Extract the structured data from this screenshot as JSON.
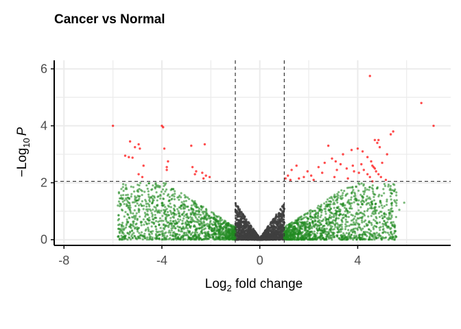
{
  "chart_data": {
    "type": "scatter",
    "title": "Cancer vs Normal",
    "xlabel": {
      "prefix": "Log",
      "sub": "2",
      "suffix": " fold change"
    },
    "ylabel": {
      "minus": "−",
      "prefix": "Log",
      "sub": "10",
      "italic": "P"
    },
    "xlim": [
      -8.4,
      7.8
    ],
    "ylim": [
      -0.2,
      6.3
    ],
    "x_ticks": [
      -8,
      -4,
      0,
      4
    ],
    "x_tick_labels": [
      "-8",
      "-4",
      "0",
      "4"
    ],
    "y_ticks": [
      0,
      2,
      4,
      6
    ],
    "y_tick_labels": [
      "0",
      "2",
      "4",
      "6"
    ],
    "grid": true,
    "thresholds": {
      "log2fc": [
        -1,
        1
      ],
      "neg_log10_p": 2.05
    },
    "colors": {
      "ns": "#404040",
      "log2fc": "#228b22",
      "p_and_log2fc": "#ff0000",
      "grid": "#ebebeb",
      "axis": "#000000",
      "threshold_line": "#333333"
    },
    "series": [
      {
        "group": "p_and_log2fc",
        "points": [
          [
            -6.0,
            4.0
          ],
          [
            -4.0,
            4.0
          ],
          [
            -3.95,
            3.95
          ],
          [
            -5.3,
            3.45
          ],
          [
            -4.95,
            3.35
          ],
          [
            -5.1,
            3.25
          ],
          [
            -4.9,
            3.2
          ],
          [
            -3.9,
            3.2
          ],
          [
            -2.8,
            3.3
          ],
          [
            -2.25,
            3.35
          ],
          [
            -5.5,
            2.95
          ],
          [
            -5.35,
            2.9
          ],
          [
            -5.2,
            2.88
          ],
          [
            -4.75,
            2.6
          ],
          [
            -3.75,
            2.75
          ],
          [
            -3.8,
            2.55
          ],
          [
            -3.8,
            2.45
          ],
          [
            -2.75,
            2.55
          ],
          [
            -2.6,
            2.4
          ],
          [
            -2.35,
            2.35
          ],
          [
            -2.2,
            2.25
          ],
          [
            -2.05,
            2.2
          ],
          [
            -4.95,
            2.3
          ],
          [
            -4.8,
            2.2
          ],
          [
            -2.65,
            2.3
          ],
          [
            -2.3,
            2.15
          ],
          [
            4.5,
            5.75
          ],
          [
            6.6,
            4.8
          ],
          [
            7.1,
            4.0
          ],
          [
            5.45,
            3.8
          ],
          [
            5.35,
            3.7
          ],
          [
            4.85,
            3.5
          ],
          [
            4.9,
            3.25
          ],
          [
            4.7,
            3.5
          ],
          [
            4.8,
            3.4
          ],
          [
            4.2,
            3.1
          ],
          [
            4.0,
            3.2
          ],
          [
            3.75,
            3.15
          ],
          [
            3.4,
            3.0
          ],
          [
            2.8,
            3.3
          ],
          [
            2.95,
            2.85
          ],
          [
            3.1,
            2.75
          ],
          [
            3.3,
            2.65
          ],
          [
            5.2,
            3.0
          ],
          [
            4.4,
            2.9
          ],
          [
            4.55,
            2.75
          ],
          [
            4.6,
            2.6
          ],
          [
            4.7,
            2.5
          ],
          [
            4.75,
            2.4
          ],
          [
            4.85,
            2.3
          ],
          [
            4.95,
            2.2
          ],
          [
            5.0,
            2.7
          ],
          [
            4.65,
            2.55
          ],
          [
            3.55,
            2.5
          ],
          [
            3.85,
            2.4
          ],
          [
            4.05,
            2.35
          ],
          [
            4.25,
            2.45
          ],
          [
            4.4,
            2.3
          ],
          [
            4.5,
            2.2
          ],
          [
            2.4,
            2.55
          ],
          [
            2.55,
            2.35
          ],
          [
            2.1,
            2.25
          ],
          [
            1.95,
            2.4
          ],
          [
            1.8,
            2.2
          ],
          [
            2.2,
            2.1
          ],
          [
            1.5,
            2.6
          ],
          [
            1.3,
            2.45
          ],
          [
            1.15,
            2.25
          ],
          [
            1.05,
            2.15
          ],
          [
            1.25,
            2.1
          ],
          [
            1.6,
            2.15
          ],
          [
            3.05,
            2.2
          ],
          [
            3.6,
            2.15
          ],
          [
            3.8,
            2.6
          ],
          [
            4.15,
            2.65
          ],
          [
            2.65,
            2.7
          ],
          [
            3.15,
            2.45
          ],
          [
            5.15,
            2.1
          ],
          [
            4.6,
            2.05
          ]
        ]
      }
    ]
  }
}
